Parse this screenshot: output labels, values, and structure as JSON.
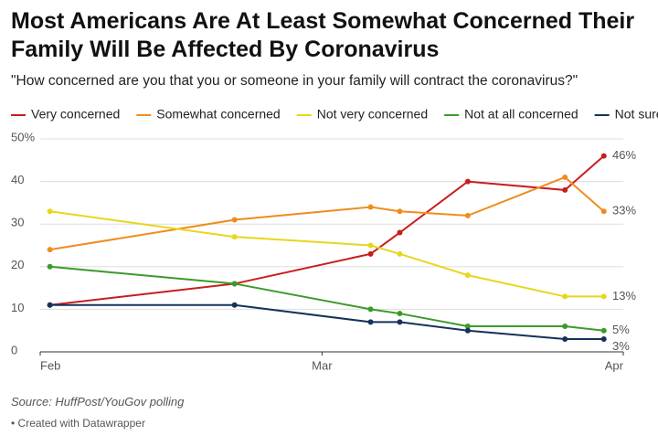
{
  "chart_data": {
    "type": "line",
    "title": "Most Americans Are At Least Somewhat Concerned Their Family Will Be Affected By Coronavirus",
    "subtitle": "\"How concerned are you that you or someone in your family will contract the coronavirus?\"",
    "source": "Source: HuffPost/YouGov polling",
    "credit": "• Created with Datawrapper",
    "x": [
      1,
      20,
      34,
      37,
      44,
      54,
      58
    ],
    "xlim": [
      0,
      60
    ],
    "xticks": [
      {
        "value": 0,
        "label": "Feb"
      },
      {
        "value": 29,
        "label": "Mar"
      },
      {
        "value": 60,
        "label": "Apr"
      }
    ],
    "ylim": [
      0,
      50
    ],
    "yticks": [
      0,
      10,
      20,
      30,
      40,
      {
        "value": 50,
        "label": "50%"
      }
    ],
    "grid": true,
    "series": [
      {
        "name": "Very concerned",
        "color": "#c71e1d",
        "values": [
          11,
          16,
          23,
          28,
          40,
          38,
          46
        ],
        "value_labels": [
          null,
          null,
          null,
          null,
          null,
          null,
          "46%"
        ]
      },
      {
        "name": "Somewhat concerned",
        "color": "#f08c1e",
        "values": [
          24,
          31,
          34,
          33,
          32,
          41,
          33
        ],
        "value_labels": [
          null,
          null,
          null,
          null,
          null,
          null,
          "33%"
        ]
      },
      {
        "name": "Not very concerned",
        "color": "#e6d71c",
        "values": [
          33,
          27,
          25,
          23,
          18,
          13,
          13
        ],
        "value_labels": [
          null,
          null,
          null,
          null,
          null,
          null,
          "13%"
        ]
      },
      {
        "name": "Not at all concerned",
        "color": "#3c9a2b",
        "values": [
          20,
          16,
          10,
          9,
          6,
          6,
          5
        ],
        "value_labels": [
          null,
          null,
          null,
          null,
          null,
          null,
          "5%"
        ]
      },
      {
        "name": "Not sure",
        "color": "#15325a",
        "values": [
          11,
          11,
          7,
          7,
          5,
          3,
          3
        ],
        "value_labels": [
          null,
          null,
          null,
          null,
          null,
          null,
          "3%"
        ]
      }
    ]
  }
}
